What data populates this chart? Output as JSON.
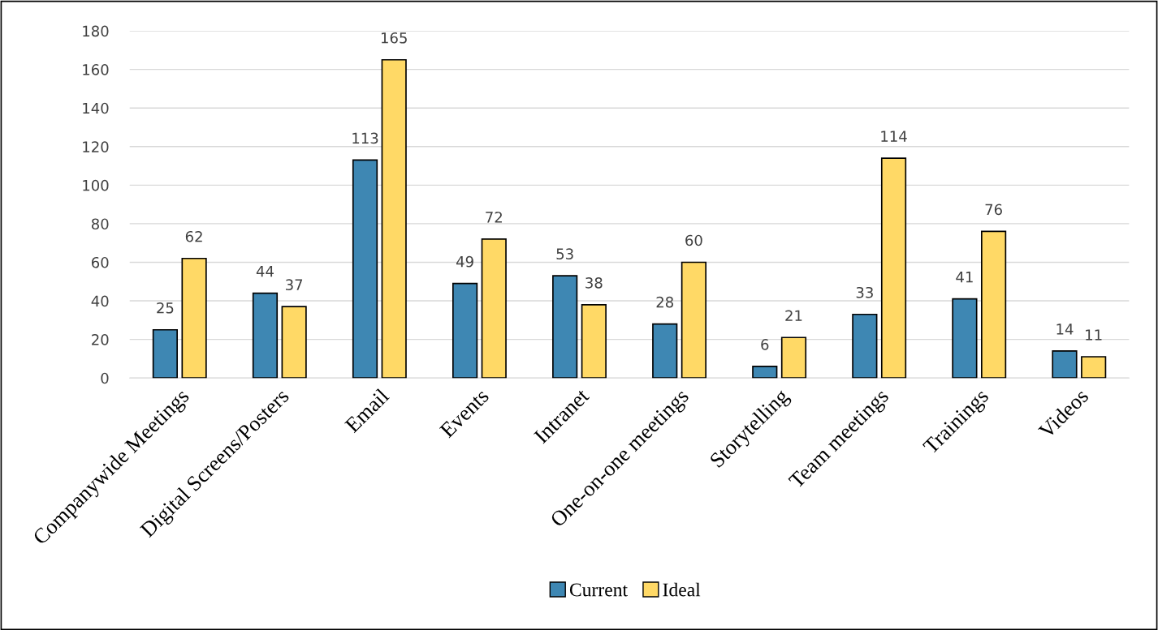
{
  "chart_data": {
    "type": "bar",
    "categories": [
      "Companywide Meetings",
      "Digital Screens/Posters",
      "Email",
      "Events",
      "Intranet",
      "One-on-one meetings",
      "Storytelling",
      "Team meetings",
      "Trainings",
      "Videos"
    ],
    "series": [
      {
        "name": "Current",
        "color": "#3e87b3",
        "values": [
          25,
          44,
          113,
          49,
          53,
          28,
          6,
          33,
          41,
          14
        ]
      },
      {
        "name": "Ideal",
        "color": "#ffd966",
        "values": [
          62,
          37,
          165,
          72,
          38,
          60,
          21,
          114,
          76,
          11
        ]
      }
    ],
    "ylim": [
      0,
      180
    ],
    "yticks": [
      0,
      20,
      40,
      60,
      80,
      100,
      120,
      140,
      160,
      180
    ],
    "grid": "y",
    "legend": "bottom",
    "data_labels": true
  }
}
